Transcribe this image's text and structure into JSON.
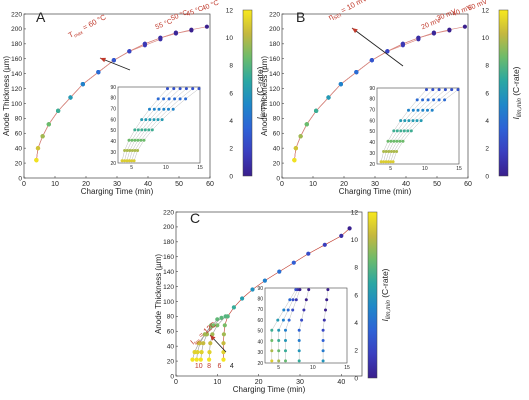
{
  "colorbar": {
    "label_main": "I",
    "label_sub": "lim,min",
    "label_unit": "(C-rate)",
    "ticks": [
      "0",
      "2",
      "4",
      "6",
      "8",
      "10",
      "12"
    ],
    "range": [
      0,
      12
    ],
    "colors": [
      "#3a1f8c",
      "#3b3fbf",
      "#2e62d6",
      "#1f87c9",
      "#2aa7a3",
      "#6cbb6c",
      "#c4b83f",
      "#f8e81d"
    ]
  },
  "chart_data": [
    {
      "panel": "A",
      "type": "scatter",
      "xlabel": "Charging Time (min)",
      "ylabel": "Anode Thickness (µm)",
      "xlim": [
        0,
        60
      ],
      "ylim": [
        0,
        220
      ],
      "xticks": [
        "0",
        "10",
        "20",
        "30",
        "40",
        "50",
        "60"
      ],
      "yticks": [
        "0",
        "20",
        "40",
        "60",
        "80",
        "100",
        "120",
        "140",
        "160",
        "180",
        "200",
        "220"
      ],
      "annotation": "T",
      "annotation_sub": "max",
      "annotation_tail": "= 60 °C",
      "series_labels": [
        "55 °C",
        "50 °C",
        "45 °C",
        "40 °C"
      ],
      "series": [
        {
          "name": "60 °C",
          "points": [
            [
              4,
              24
            ],
            [
              4.5,
              40
            ],
            [
              6,
              56
            ],
            [
              8,
              72
            ],
            [
              11,
              90
            ],
            [
              15,
              108
            ],
            [
              19,
              126
            ],
            [
              24,
              142
            ],
            [
              29,
              158
            ],
            [
              34,
              170
            ]
          ]
        },
        {
          "name": "55 °C",
          "points": [
            [
              4,
              24
            ],
            [
              4.5,
              40
            ],
            [
              6,
              56
            ],
            [
              8,
              72
            ],
            [
              11,
              90
            ],
            [
              15,
              108
            ],
            [
              19,
              126
            ],
            [
              24,
              142
            ],
            [
              29,
              158
            ],
            [
              34,
              170
            ],
            [
              39,
              178
            ],
            [
              44,
              186
            ]
          ]
        },
        {
          "name": "50 °C",
          "points": [
            [
              4,
              24
            ],
            [
              4.5,
              40
            ],
            [
              6,
              56
            ],
            [
              8,
              72
            ],
            [
              11,
              90
            ],
            [
              15,
              108
            ],
            [
              19,
              126
            ],
            [
              24,
              142
            ],
            [
              29,
              158
            ],
            [
              34,
              170
            ],
            [
              39,
              180
            ],
            [
              44,
              188
            ],
            [
              49,
              195
            ]
          ]
        },
        {
          "name": "45 °C",
          "points": [
            [
              4,
              24
            ],
            [
              4.5,
              40
            ],
            [
              6,
              56
            ],
            [
              8,
              72
            ],
            [
              11,
              90
            ],
            [
              15,
              108
            ],
            [
              19,
              126
            ],
            [
              24,
              142
            ],
            [
              29,
              158
            ],
            [
              34,
              170
            ],
            [
              39,
              180
            ],
            [
              44,
              188
            ],
            [
              49,
              194
            ],
            [
              54,
              198
            ]
          ]
        },
        {
          "name": "40 °C",
          "points": [
            [
              4,
              24
            ],
            [
              4.5,
              40
            ],
            [
              6,
              56
            ],
            [
              8,
              72
            ],
            [
              11,
              90
            ],
            [
              15,
              108
            ],
            [
              19,
              126
            ],
            [
              24,
              142
            ],
            [
              29,
              158
            ],
            [
              34,
              170
            ],
            [
              39,
              180
            ],
            [
              44,
              188
            ],
            [
              49,
              194
            ],
            [
              54,
              199
            ],
            [
              59,
              203
            ]
          ]
        }
      ],
      "inset": {
        "xlim": [
          3,
          15
        ],
        "ylim": [
          20,
          90
        ],
        "xticks": [
          "5",
          "10",
          "15"
        ],
        "yticks": [
          "20",
          "30",
          "40",
          "50",
          "60",
          "70",
          "80",
          "90"
        ]
      }
    },
    {
      "panel": "B",
      "type": "scatter",
      "xlabel": "Charging Time (min)",
      "ylabel": "Anode Thickness (µm)",
      "xlim": [
        0,
        60
      ],
      "ylim": [
        0,
        220
      ],
      "xticks": [
        "0",
        "10",
        "20",
        "30",
        "40",
        "50",
        "60"
      ],
      "yticks": [
        "0",
        "20",
        "40",
        "60",
        "80",
        "100",
        "120",
        "140",
        "160",
        "180",
        "200",
        "220"
      ],
      "annotation": "η",
      "annotation_sub": "SEI",
      "annotation_tail": "= 10 mV",
      "series_labels": [
        "20 mV",
        "30 mV",
        "40 mV",
        "50 mV"
      ],
      "series": [
        {
          "name": "10 mV",
          "points": [
            [
              4,
              24
            ],
            [
              4.5,
              40
            ],
            [
              6,
              56
            ],
            [
              8,
              72
            ],
            [
              11,
              90
            ],
            [
              15,
              108
            ],
            [
              19,
              126
            ],
            [
              24,
              142
            ],
            [
              29,
              158
            ],
            [
              34,
              170
            ]
          ]
        },
        {
          "name": "20 mV",
          "points": [
            [
              4,
              24
            ],
            [
              4.5,
              40
            ],
            [
              6,
              56
            ],
            [
              8,
              72
            ],
            [
              11,
              90
            ],
            [
              15,
              108
            ],
            [
              19,
              126
            ],
            [
              24,
              142
            ],
            [
              29,
              158
            ],
            [
              34,
              170
            ],
            [
              39,
              178
            ],
            [
              44,
              186
            ]
          ]
        },
        {
          "name": "30 mV",
          "points": [
            [
              4,
              24
            ],
            [
              4.5,
              40
            ],
            [
              6,
              56
            ],
            [
              8,
              72
            ],
            [
              11,
              90
            ],
            [
              15,
              108
            ],
            [
              19,
              126
            ],
            [
              24,
              142
            ],
            [
              29,
              158
            ],
            [
              34,
              170
            ],
            [
              39,
              180
            ],
            [
              44,
              188
            ],
            [
              49,
              195
            ]
          ]
        },
        {
          "name": "40 mV",
          "points": [
            [
              4,
              24
            ],
            [
              4.5,
              40
            ],
            [
              6,
              56
            ],
            [
              8,
              72
            ],
            [
              11,
              90
            ],
            [
              15,
              108
            ],
            [
              19,
              126
            ],
            [
              24,
              142
            ],
            [
              29,
              158
            ],
            [
              34,
              170
            ],
            [
              39,
              180
            ],
            [
              44,
              188
            ],
            [
              49,
              194
            ],
            [
              54,
              198
            ]
          ]
        },
        {
          "name": "50 mV",
          "points": [
            [
              4,
              24
            ],
            [
              4.5,
              40
            ],
            [
              6,
              56
            ],
            [
              8,
              72
            ],
            [
              11,
              90
            ],
            [
              15,
              108
            ],
            [
              19,
              126
            ],
            [
              24,
              142
            ],
            [
              29,
              158
            ],
            [
              34,
              170
            ],
            [
              39,
              180
            ],
            [
              44,
              188
            ],
            [
              49,
              194
            ],
            [
              54,
              199
            ],
            [
              59,
              203
            ]
          ]
        }
      ],
      "inset": {
        "xlim": [
          3,
          15
        ],
        "ylim": [
          20,
          90
        ],
        "xticks": [
          "5",
          "10",
          "15"
        ],
        "yticks": [
          "20",
          "30",
          "40",
          "50",
          "60",
          "70",
          "80",
          "90"
        ]
      }
    },
    {
      "panel": "C",
      "type": "scatter",
      "xlabel": "Charging Time (min)",
      "ylabel": "Anode Thickness (µm)",
      "xlim": [
        0,
        45
      ],
      "ylim": [
        0,
        220
      ],
      "xticks": [
        "0",
        "10",
        "20",
        "30",
        "40"
      ],
      "yticks": [
        "0",
        "20",
        "40",
        "60",
        "80",
        "100",
        "120",
        "140",
        "160",
        "180",
        "200",
        "220"
      ],
      "annotation": "I",
      "annotation_sub": "lim",
      "annotation_tail": "= 12C",
      "series_labels": [
        "10",
        "8",
        "6",
        "4"
      ],
      "series": [
        {
          "name": "12C",
          "points": [
            [
              4,
              22
            ],
            [
              4.5,
              32
            ],
            [
              5.5,
              44
            ],
            [
              7,
              56
            ],
            [
              8.5,
              68
            ]
          ]
        },
        {
          "name": "10",
          "points": [
            [
              5,
              22
            ],
            [
              5.2,
              32
            ],
            [
              5.8,
              44
            ],
            [
              7,
              56
            ],
            [
              8.5,
              66
            ],
            [
              10,
              76
            ]
          ]
        },
        {
          "name": "8",
          "points": [
            [
              6,
              22
            ],
            [
              6.2,
              32
            ],
            [
              6.6,
              44
            ],
            [
              7.5,
              56
            ],
            [
              9,
              68
            ],
            [
              11,
              78
            ]
          ]
        },
        {
          "name": "6",
          "points": [
            [
              8,
              22
            ],
            [
              8.1,
              32
            ],
            [
              8.3,
              44
            ],
            [
              8.8,
              56
            ],
            [
              10,
              68
            ],
            [
              12,
              80
            ]
          ]
        },
        {
          "name": "4",
          "points": [
            [
              11.5,
              22
            ],
            [
              11.5,
              32
            ],
            [
              11.5,
              44
            ],
            [
              11.6,
              56
            ],
            [
              11.8,
              68
            ],
            [
              12.5,
              80
            ],
            [
              14,
              92
            ],
            [
              16,
              104
            ],
            [
              18.5,
              116
            ],
            [
              21.5,
              128
            ],
            [
              25,
              140
            ],
            [
              28.5,
              152
            ],
            [
              32,
              164
            ],
            [
              36,
              176
            ],
            [
              40,
              188
            ],
            [
              42,
              198
            ]
          ]
        }
      ],
      "inset": {
        "xlim": [
          3,
          15
        ],
        "ylim": [
          20,
          90
        ],
        "xticks": [
          "5",
          "10",
          "15"
        ],
        "yticks": [
          "20",
          "30",
          "40",
          "50",
          "60",
          "70",
          "80",
          "90"
        ]
      }
    }
  ]
}
